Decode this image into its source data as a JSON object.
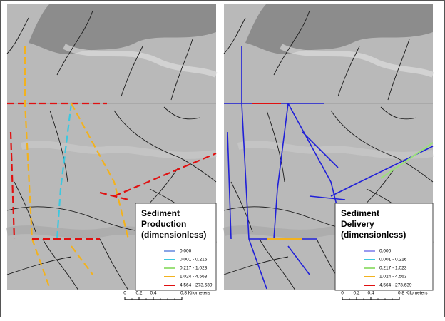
{
  "panels": [
    {
      "legend": {
        "title": [
          "Sediment",
          "Production",
          "(dimensionless)"
        ],
        "entries": [
          {
            "label": "0.000",
            "color": "#8aa4e6"
          },
          {
            "label": "0.001 - 0.216",
            "color": "#3cc8e0"
          },
          {
            "label": "0.217 - 1.023",
            "color": "#9be07a"
          },
          {
            "label": "1.024 - 4.563",
            "color": "#f2b21e"
          },
          {
            "label": "4.564 - 273.639",
            "color": "#e01010"
          }
        ]
      },
      "scale_bar": {
        "ticks": [
          0,
          0.2,
          0.4,
          {
            "value": 0.8,
            "label": "0.8 Kilometers"
          }
        ]
      }
    },
    {
      "legend": {
        "title": [
          "Sediment",
          "Delivery",
          "(dimensionless)"
        ],
        "entries": [
          {
            "label": "0.000",
            "color": "#9a9af0"
          },
          {
            "label": "0.001 - 0.216",
            "color": "#3cc8e0"
          },
          {
            "label": "0.217 - 1.023",
            "color": "#9be07a"
          },
          {
            "label": "1.024 - 4.563",
            "color": "#f2b21e"
          },
          {
            "label": "4.564 - 273.639",
            "color": "#e01010"
          }
        ]
      },
      "scale_bar": {
        "ticks": [
          0,
          0.2,
          0.4,
          {
            "value": 0.8,
            "label": "0.8 Kilometers"
          }
        ]
      }
    }
  ]
}
